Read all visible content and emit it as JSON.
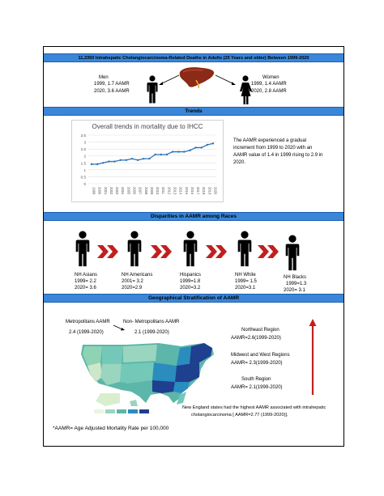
{
  "header_bar": "11,3350 Intrahepatic Cholangiocarcinoma-Related Deaths in Adults (25 Years and older) Between 1999-2020",
  "men": {
    "title": "Men",
    "line1": "1999, 1.7 AAMR",
    "line2": "2020, 3.6 AAMR"
  },
  "women": {
    "title": "Women",
    "line1": "1999, 1.4 AAMR",
    "line2": "2020, 2.8 AAMR"
  },
  "trends": {
    "bar_title": "Trends",
    "description_line1": "The AAMR experienced a gradual",
    "description_line2": "increment from 1999 to 2020 with an",
    "description_line3": "AAMR value of 1.4 in 1999 rising to 2.9 in",
    "description_line4": "2020."
  },
  "chart_data": {
    "type": "line",
    "title": "Overall trends in mortality due to IHCC",
    "x": [
      "1999",
      "2000",
      "2001",
      "2002",
      "2003",
      "2004",
      "2005",
      "2006",
      "2007",
      "2008",
      "2009",
      "2010",
      "2011",
      "2012",
      "2013",
      "2014",
      "2015",
      "2016",
      "2017",
      "2018",
      "2019",
      "2020"
    ],
    "values": [
      1.4,
      1.4,
      1.5,
      1.6,
      1.6,
      1.7,
      1.7,
      1.8,
      1.7,
      1.8,
      1.8,
      2.1,
      2.1,
      2.1,
      2.3,
      2.3,
      2.3,
      2.4,
      2.6,
      2.6,
      2.8,
      2.9
    ],
    "yticks": [
      "0",
      "0.5",
      "1",
      "1.5",
      "2",
      "2.5",
      "3",
      "3.5"
    ],
    "ylim": [
      0,
      3.5
    ],
    "grid": true,
    "color": "#2e75b6"
  },
  "races": {
    "bar_title": "Disparities in AAMR among Races",
    "groups": [
      {
        "name": "NH Asians",
        "line1": "1999= 2.2",
        "line2": "2020= 3.6"
      },
      {
        "name": "NH Americans",
        "line1": "2001= 3.2",
        "line2": "2020=2.9"
      },
      {
        "name": "Hispanics",
        "line1": "1999=1.8",
        "line2": "2020=3.2"
      },
      {
        "name": "NH White",
        "line1": "1999= 1.5",
        "line2": "2020=3.1"
      },
      {
        "name": "NH Blacks",
        "line1": "1999=1.3",
        "line2": "2020= 3.1"
      }
    ],
    "chevron_color": "#c0201f"
  },
  "geo": {
    "bar_title": "Geographical Stratification of AAMR",
    "metro_title": "Metropolitans AAMR",
    "metro_value": "2.4 (1999-2020)",
    "nonmetro_title": "Non- Metropolitans AAMR",
    "nonmetro_value": "2.1 (1999-2020)",
    "northeast_title": "Northeast Region",
    "northeast_value": "AAMR=2.6(1999-2020)",
    "midwest_title": "Midwest and West Regions",
    "midwest_value": "AAMR= 2.3(1999-2020)",
    "south_title": "South Region",
    "south_value": "AAMR= 2.1(1999-2020)",
    "england_line1": "New England states had the highest AAMR associated with intrahepatic",
    "england_line2": "cholangiocarcinoma [ AAMR=2.77 (1999-2020)]."
  },
  "footnote": "*AAMR= Age Adjusted Mortality Rate per 100,000",
  "colors": {
    "bar": "#3a86d8",
    "arrow": "#c0201f",
    "map_dark": "#1f3f8f",
    "map_mid": "#2b8cbe",
    "map_light": "#74c8b8"
  }
}
